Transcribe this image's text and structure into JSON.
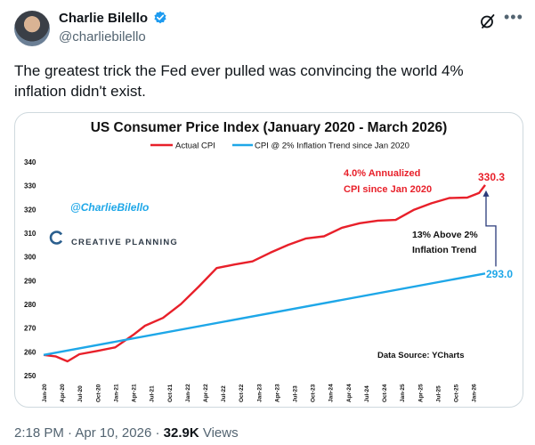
{
  "author": {
    "name": "Charlie Bilello",
    "handle": "@charliebilello"
  },
  "icons": {
    "verified": "verified-badge-icon",
    "grok": "grok-icon",
    "more": "more-icon"
  },
  "tweet": {
    "text": "The greatest trick the Fed ever pulled was convincing the world 4%\ninflation didn't exist."
  },
  "footer": {
    "time": "2:18 PM",
    "separator1": "·",
    "date": "Apr 10, 2026",
    "separator2": "·",
    "views_count": "32.9K",
    "views_label": "Views"
  },
  "colors": {
    "actual": "#e8202a",
    "trend": "#1ea7e8",
    "accent_blue": "#1d9bf0"
  },
  "chart_data": {
    "type": "line",
    "title": "US Consumer Price Index (January 2020 -  March 2026)",
    "ylim": [
      250,
      340
    ],
    "yticks": [
      250,
      260,
      270,
      280,
      290,
      300,
      310,
      320,
      330,
      340
    ],
    "x_ticks": [
      "Jan-20",
      "Apr-20",
      "Jul-20",
      "Oct-20",
      "Jan-21",
      "Apr-21",
      "Jul-21",
      "Oct-21",
      "Jan-22",
      "Apr-22",
      "Jul-22",
      "Oct-22",
      "Jan-23",
      "Apr-23",
      "Jul-23",
      "Oct-23",
      "Jan-24",
      "Apr-24",
      "Jul-24",
      "Oct-24",
      "Jan-25",
      "Apr-25",
      "Jul-25",
      "Oct-25",
      "Jan-26"
    ],
    "x_start": "2020-01",
    "x_end": "2026-03",
    "legend_position": "top-center",
    "series": [
      {
        "name": "Actual CPI",
        "color": "#e8202a",
        "points": [
          [
            "2020-01",
            258.7
          ],
          [
            "2020-03",
            258.1
          ],
          [
            "2020-05",
            256.0
          ],
          [
            "2020-07",
            259.0
          ],
          [
            "2020-10",
            260.4
          ],
          [
            "2021-01",
            261.9
          ],
          [
            "2021-04",
            267.1
          ],
          [
            "2021-06",
            271.0
          ],
          [
            "2021-09",
            274.3
          ],
          [
            "2021-12",
            280.1
          ],
          [
            "2022-03",
            287.5
          ],
          [
            "2022-06",
            295.3
          ],
          [
            "2022-09",
            296.8
          ],
          [
            "2022-12",
            298.1
          ],
          [
            "2023-03",
            301.8
          ],
          [
            "2023-06",
            305.1
          ],
          [
            "2023-09",
            307.8
          ],
          [
            "2023-12",
            308.7
          ],
          [
            "2024-03",
            312.3
          ],
          [
            "2024-06",
            314.2
          ],
          [
            "2024-09",
            315.3
          ],
          [
            "2024-12",
            315.6
          ],
          [
            "2025-03",
            319.8
          ],
          [
            "2025-06",
            322.6
          ],
          [
            "2025-09",
            324.8
          ],
          [
            "2025-12",
            325.0
          ],
          [
            "2026-02",
            327.0
          ],
          [
            "2026-03",
            330.3
          ]
        ]
      },
      {
        "name": "CPI @ 2% Inflation Trend since Jan 2020",
        "color": "#1ea7e8",
        "points": [
          [
            "2020-01",
            258.7
          ],
          [
            "2026-03",
            293.0
          ]
        ]
      }
    ],
    "end_labels": {
      "actual": "330.3",
      "trend": "293.0"
    },
    "annotations": {
      "annualized": [
        "4.0% Annualized",
        "CPI since Jan 2020"
      ],
      "gap": [
        "13% Above 2%",
        "Inflation Trend"
      ],
      "watermark": "@CharlieBilello",
      "logo": "CREATIVE PLANNING",
      "source": "Data Source: YCharts"
    }
  }
}
